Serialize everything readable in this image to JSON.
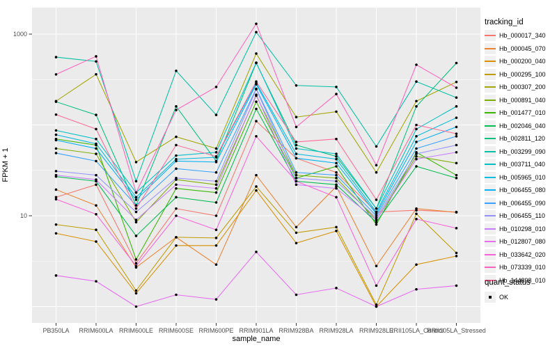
{
  "figure": {
    "background": "#FFFFFF",
    "panel_bg": "#EBEBEB",
    "grid_color": "#FFFFFF",
    "axis_text_color": "#4D4D4D",
    "tick_color": "#333333",
    "point_color": "#000000"
  },
  "chart_data": {
    "type": "line",
    "title": "",
    "xlabel": "sample_name",
    "ylabel": "FPKM + 1",
    "y_scale": "log10",
    "y_tick_labels": [
      "1000",
      "10"
    ],
    "y_tick_values": [
      1000,
      10
    ],
    "y_major_gridlines": [
      1,
      10,
      100,
      1000
    ],
    "y_minor_gridlines": [
      3.162,
      31.62,
      316.2
    ],
    "ylim": [
      0.65,
      2000
    ],
    "grid": true,
    "legend_position": "right",
    "categories": [
      "PB350LA",
      "RRIM600LA",
      "RRIM600LE",
      "RRIM600SE",
      "RRIM600PE",
      "RRIM901LA",
      "RRIM928BA",
      "RRIM928LA",
      "RRIM928LE",
      "RRII105LA_Control",
      "RRII105LA_Stressed"
    ],
    "legend_title": "tracking_id",
    "point_legend_title": "quant_status",
    "point_legend_label": "OK",
    "series": [
      {
        "name": "Hb_000017_340",
        "color": "#F8766D",
        "values": [
          16,
          22,
          3.0,
          12,
          10,
          110,
          43,
          30,
          11,
          11.5,
          11
        ]
      },
      {
        "name": "Hb_000045_070",
        "color": "#EA8331",
        "values": [
          19.4,
          13,
          2.7,
          5.8,
          2.9,
          28,
          7.5,
          21,
          2.8,
          12,
          10.9
        ]
      },
      {
        "name": "Hb_000200_040",
        "color": "#D89000",
        "values": [
          6.4,
          5.2,
          1.4,
          4.7,
          4.7,
          19,
          5.0,
          6.8,
          1.0,
          2.9,
          3.6
        ]
      },
      {
        "name": "Hb_000295_100",
        "color": "#C09B00",
        "values": [
          8.0,
          7.0,
          1.5,
          5.8,
          5.7,
          21,
          6.5,
          7.5,
          1.05,
          10.5,
          3.9
        ]
      },
      {
        "name": "Hb_000307_200",
        "color": "#A3A500",
        "values": [
          183,
          361,
          39,
          74,
          55,
          611,
          122,
          140,
          30,
          183,
          297
        ]
      },
      {
        "name": "Hb_000891_040",
        "color": "#7CAE00",
        "values": [
          55,
          48,
          8.5,
          25,
          22,
          210,
          28,
          26,
          9,
          45,
          38
        ]
      },
      {
        "name": "Hb_001477_010",
        "color": "#39B600",
        "values": [
          70,
          60,
          3.3,
          20,
          18,
          180,
          26,
          35,
          8,
          50,
          28
        ]
      },
      {
        "name": "Hb_002046_040",
        "color": "#00BB4E",
        "values": [
          27,
          24,
          6.0,
          16,
          14,
          150,
          24,
          22,
          8.5,
          35,
          26
        ]
      },
      {
        "name": "Hb_002811_120",
        "color": "#00BF7D",
        "values": [
          180,
          129,
          13,
          160,
          40,
          480,
          60,
          45,
          12,
          160,
          480
        ]
      },
      {
        "name": "Hb_003299_090",
        "color": "#00C1A3",
        "values": [
          558,
          500,
          24,
          394,
          129,
          1050,
          272,
          262,
          58,
          300,
          200
        ]
      },
      {
        "name": "Hb_003711_040",
        "color": "#00BFC4",
        "values": [
          87,
          70,
          18,
          46,
          50,
          485,
          55,
          48,
          12,
          90,
          160
        ]
      },
      {
        "name": "Hb_005965_010",
        "color": "#00BAE0",
        "values": [
          78,
          62,
          16,
          42,
          44,
          290,
          48,
          42,
          11,
          75,
          120
        ]
      },
      {
        "name": "Hb_006455_080",
        "color": "#00B0F6",
        "values": [
          68,
          55,
          15,
          40,
          39,
          280,
          43,
          38,
          10.5,
          65,
          95
        ]
      },
      {
        "name": "Hb_006455_090",
        "color": "#35A2FF",
        "values": [
          49,
          40,
          13,
          33,
          30,
          250,
          30,
          28,
          10,
          55,
          75
        ]
      },
      {
        "name": "Hb_006455_110",
        "color": "#9590FF",
        "values": [
          31,
          28,
          11,
          26,
          24,
          247,
          26,
          24,
          9.5,
          48,
          60
        ]
      },
      {
        "name": "Hb_010298_010",
        "color": "#C77CFF",
        "values": [
          28,
          25,
          9.0,
          22,
          20,
          215,
          22,
          20,
          9,
          42,
          50
        ]
      },
      {
        "name": "Hb_012807_080",
        "color": "#E76BF3",
        "values": [
          2.2,
          1.9,
          1.0,
          1.35,
          1.2,
          4.0,
          1.35,
          1.6,
          1.0,
          1.55,
          1.7
        ]
      },
      {
        "name": "Hb_033642_020",
        "color": "#FA62DB",
        "values": [
          15.2,
          10.4,
          2.8,
          10,
          7.0,
          75,
          24,
          16,
          1.7,
          9.2,
          7.3
        ]
      },
      {
        "name": "Hb_073339_010",
        "color": "#FF62BC",
        "values": [
          360,
          569,
          18,
          146,
          262,
          1300,
          95,
          219,
          36,
          460,
          257
        ]
      },
      {
        "name": "Hb_144898_010",
        "color": "#FF6A98",
        "values": [
          130,
          90,
          12,
          60,
          45,
          300,
          65,
          70,
          15,
          100,
          80
        ]
      }
    ]
  }
}
